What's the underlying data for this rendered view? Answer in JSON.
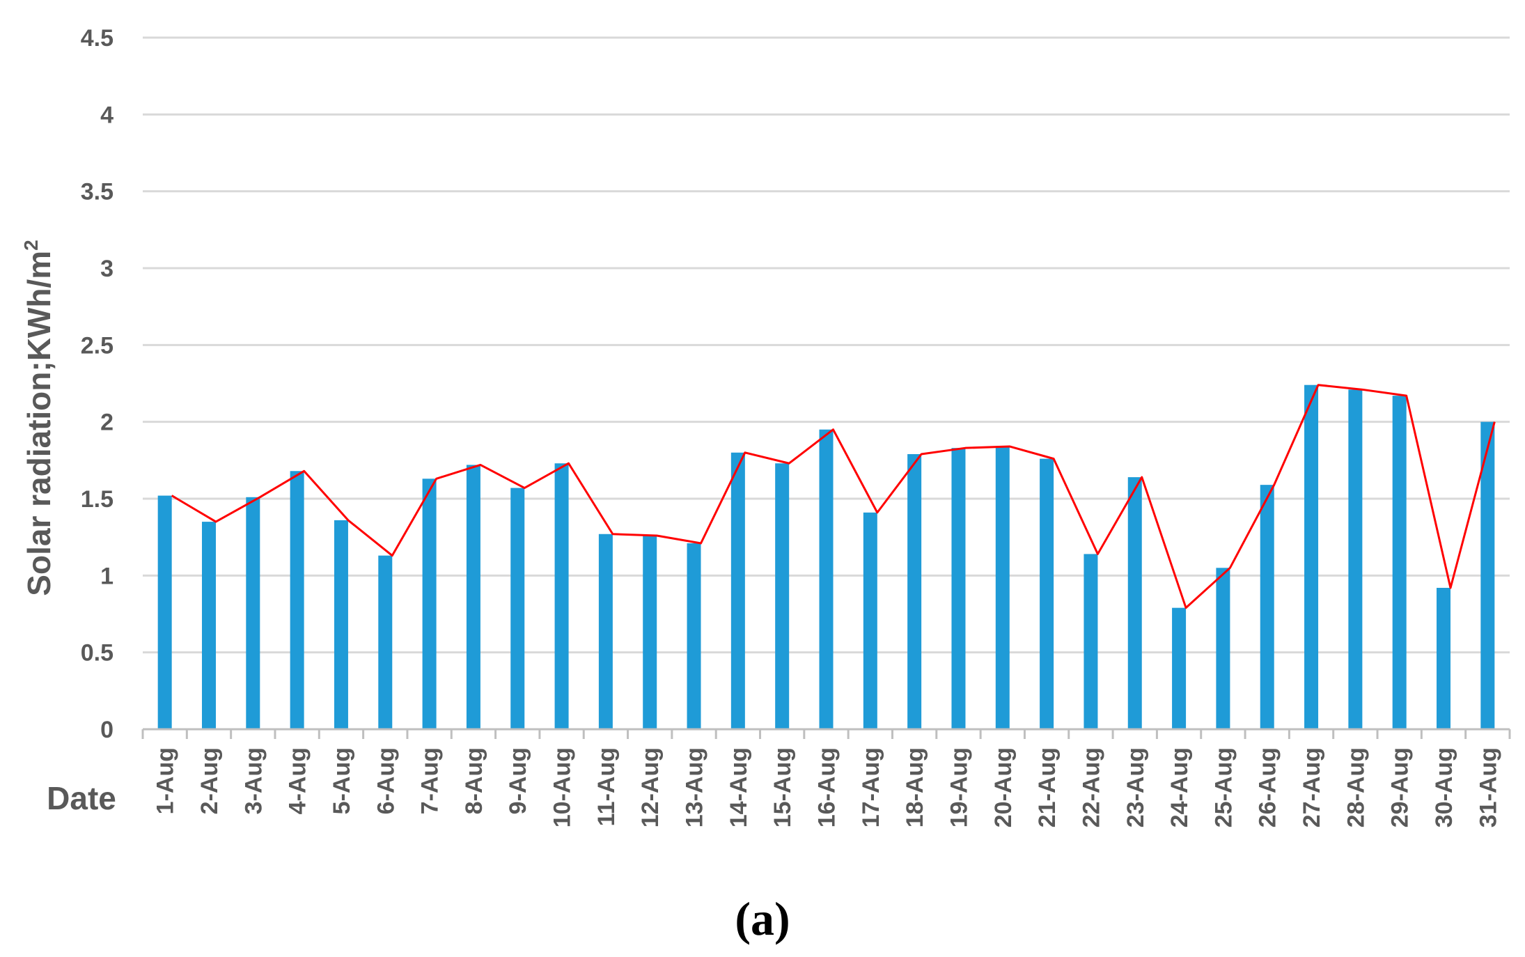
{
  "chart_data": {
    "type": "bar",
    "xlabel": "Date",
    "ylabel": "Solar radiation;KWh/m",
    "ylabel_superscript": "2",
    "caption": "(a)",
    "ylim": [
      0,
      4.5
    ],
    "yticks": [
      "0",
      "0.5",
      "1",
      "1.5",
      "2",
      "2.5",
      "3",
      "3.5",
      "4",
      "4.5"
    ],
    "grid": true,
    "legend": "none",
    "categories": [
      "1-Aug",
      "2-Aug",
      "3-Aug",
      "4-Aug",
      "5-Aug",
      "6-Aug",
      "7-Aug",
      "8-Aug",
      "9-Aug",
      "10-Aug",
      "11-Aug",
      "12-Aug",
      "13-Aug",
      "14-Aug",
      "15-Aug",
      "16-Aug",
      "17-Aug",
      "18-Aug",
      "19-Aug",
      "20-Aug",
      "21-Aug",
      "22-Aug",
      "23-Aug",
      "24-Aug",
      "25-Aug",
      "26-Aug",
      "27-Aug",
      "28-Aug",
      "29-Aug",
      "30-Aug",
      "31-Aug"
    ],
    "series": [
      {
        "type": "bar",
        "color": "#1F9BD7",
        "values": [
          1.52,
          1.35,
          1.51,
          1.68,
          1.36,
          1.13,
          1.63,
          1.72,
          1.57,
          1.73,
          1.27,
          1.26,
          1.21,
          1.8,
          1.73,
          1.95,
          1.41,
          1.79,
          1.83,
          1.84,
          1.76,
          1.14,
          1.64,
          0.79,
          1.05,
          1.59,
          2.24,
          2.21,
          2.17,
          0.92,
          2.0
        ]
      },
      {
        "type": "line",
        "color": "#FF0000",
        "values": [
          1.52,
          1.35,
          1.51,
          1.68,
          1.36,
          1.13,
          1.63,
          1.72,
          1.57,
          1.73,
          1.27,
          1.26,
          1.21,
          1.8,
          1.73,
          1.95,
          1.41,
          1.79,
          1.83,
          1.84,
          1.76,
          1.14,
          1.64,
          0.79,
          1.05,
          1.59,
          2.24,
          2.21,
          2.17,
          0.92,
          2.0
        ]
      }
    ],
    "colors": {
      "grid": "#D9D9D9",
      "axis": "#BFBFBF",
      "text": "#595959"
    }
  }
}
